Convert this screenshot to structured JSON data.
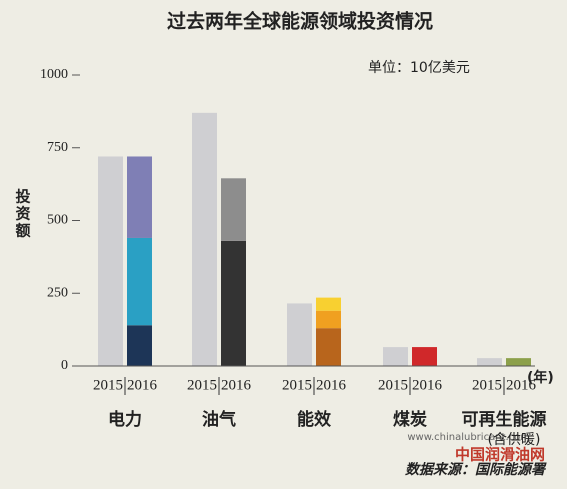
{
  "chart_data": {
    "type": "grouped-stacked-bar",
    "title": "过去两年全球能源领域投资情况",
    "unit": "单位：10亿美元",
    "y_label": "投资额",
    "x_unit": "(年)",
    "source": "数据来源：国际能源署",
    "watermark": [
      "www.chinalubricant.com",
      "中国润滑油网"
    ],
    "categories": [
      "电力",
      "油气",
      "能效",
      "煤炭",
      "可再生能源"
    ],
    "category_notes": [
      null,
      null,
      null,
      null,
      "(含供暖)"
    ],
    "series": [
      {
        "name": "2015",
        "color": "#cfcfd2",
        "values": [
          720,
          870,
          215,
          65,
          27
        ]
      },
      {
        "name": "2016",
        "segments": [
          [
            {
              "value": 140,
              "color": "#1d3557"
            },
            {
              "value": 300,
              "color": "#2aa0c4"
            },
            {
              "value": 280,
              "color": "#7f7fb5"
            }
          ],
          [
            {
              "value": 430,
              "color": "#333333"
            },
            {
              "value": 215,
              "color": "#8d8d8d"
            }
          ],
          [
            {
              "value": 130,
              "color": "#b8651c"
            },
            {
              "value": 60,
              "color": "#f0a020"
            },
            {
              "value": 45,
              "color": "#f8d030"
            }
          ],
          [
            {
              "value": 65,
              "color": "#d0282a"
            }
          ],
          [
            {
              "value": 27,
              "color": "#8ca04a"
            }
          ]
        ]
      }
    ],
    "ylim": [
      0,
      1000
    ],
    "yticks": [
      0,
      250,
      500,
      750,
      1000
    ]
  }
}
